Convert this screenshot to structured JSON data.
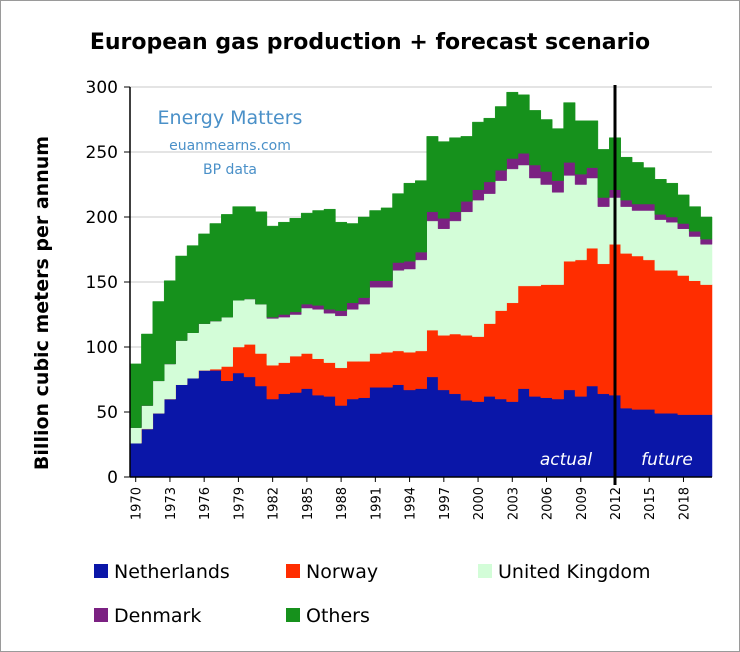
{
  "chart_data": {
    "type": "area",
    "stacked": true,
    "title": "European gas production + forecast scenario",
    "ylabel": "Billion cubic meters per annum",
    "xlabel": "",
    "ylim": [
      0,
      300
    ],
    "yticks": [
      0,
      50,
      100,
      150,
      200,
      250,
      300
    ],
    "xticks": [
      1970,
      1973,
      1976,
      1979,
      1982,
      1985,
      1988,
      1991,
      1994,
      1997,
      2000,
      2003,
      2006,
      2009,
      2012,
      2015,
      2018
    ],
    "xlim": [
      1970,
      2021
    ],
    "divider_year": 2012.5,
    "watermark": [
      "Energy Matters",
      "euanmearns.com",
      "BP data"
    ],
    "annotations": {
      "actual": "actual",
      "future": "future"
    },
    "grid": "horizontal",
    "x": [
      1970,
      1971,
      1972,
      1973,
      1974,
      1975,
      1976,
      1977,
      1978,
      1979,
      1980,
      1981,
      1982,
      1983,
      1984,
      1985,
      1986,
      1987,
      1988,
      1989,
      1990,
      1991,
      1992,
      1993,
      1994,
      1995,
      1996,
      1997,
      1998,
      1999,
      2000,
      2001,
      2002,
      2003,
      2004,
      2005,
      2006,
      2007,
      2008,
      2009,
      2010,
      2011,
      2012,
      2013,
      2014,
      2015,
      2016,
      2017,
      2018,
      2019,
      2020
    ],
    "series": [
      {
        "name": "Netherlands",
        "color": "#0a16a8",
        "values": [
          26,
          37,
          49,
          60,
          71,
          76,
          82,
          82,
          74,
          80,
          77,
          70,
          60,
          64,
          65,
          68,
          63,
          62,
          55,
          60,
          61,
          69,
          69,
          71,
          67,
          68,
          77,
          67,
          64,
          59,
          58,
          62,
          60,
          58,
          68,
          62,
          61,
          60,
          67,
          62,
          70,
          64,
          63,
          53,
          52,
          52,
          49,
          49,
          48,
          48,
          48
        ]
      },
      {
        "name": "Norway",
        "color": "#ff2d00",
        "values": [
          0,
          0,
          0,
          0,
          0,
          0,
          0,
          1,
          11,
          20,
          25,
          25,
          26,
          24,
          28,
          27,
          28,
          26,
          29,
          29,
          28,
          26,
          27,
          26,
          29,
          29,
          36,
          42,
          46,
          50,
          50,
          56,
          68,
          76,
          79,
          85,
          87,
          88,
          99,
          105,
          106,
          100,
          116,
          119,
          118,
          115,
          110,
          110,
          107,
          103,
          100
        ]
      },
      {
        "name": "United Kingdom",
        "color": "#d3fdd8",
        "values": [
          12,
          18,
          25,
          27,
          34,
          35,
          36,
          37,
          38,
          36,
          35,
          38,
          36,
          35,
          32,
          35,
          38,
          38,
          40,
          40,
          44,
          51,
          50,
          62,
          64,
          70,
          84,
          82,
          87,
          95,
          105,
          100,
          100,
          103,
          93,
          83,
          77,
          71,
          66,
          58,
          54,
          44,
          36,
          36,
          35,
          38,
          39,
          37,
          36,
          34,
          31
        ]
      },
      {
        "name": "Denmark",
        "color": "#7b2182",
        "values": [
          0,
          0,
          0,
          0,
          0,
          0,
          0,
          0,
          0,
          0,
          0,
          0,
          1,
          2,
          2,
          3,
          3,
          3,
          4,
          5,
          5,
          5,
          5,
          6,
          6,
          6,
          7,
          8,
          7,
          8,
          8,
          9,
          8,
          8,
          9,
          10,
          10,
          9,
          10,
          8,
          8,
          7,
          6,
          5,
          5,
          5,
          4,
          4,
          4,
          4,
          4
        ]
      },
      {
        "name": "Others",
        "color": "#16911c",
        "values": [
          49,
          55,
          61,
          64,
          65,
          67,
          69,
          75,
          79,
          72,
          71,
          71,
          70,
          71,
          72,
          70,
          73,
          77,
          68,
          61,
          62,
          54,
          56,
          53,
          60,
          55,
          58,
          59,
          57,
          50,
          52,
          49,
          49,
          51,
          45,
          42,
          40,
          40,
          46,
          41,
          36,
          37,
          40,
          33,
          32,
          28,
          27,
          26,
          22,
          19,
          17
        ]
      }
    ]
  }
}
